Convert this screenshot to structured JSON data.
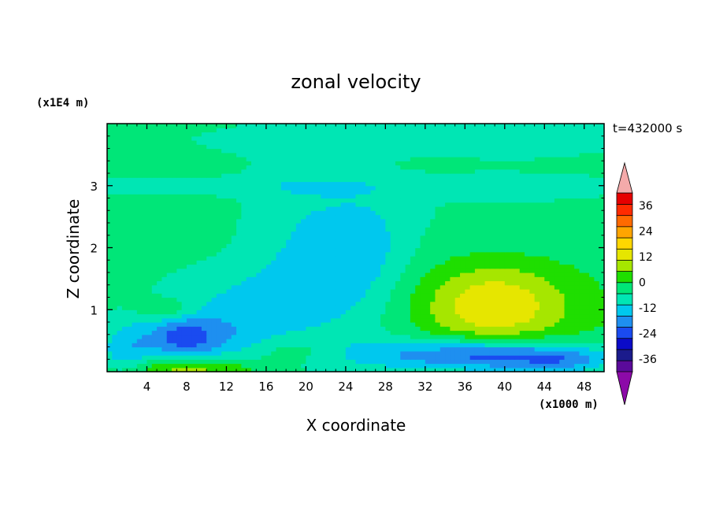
{
  "chart_data": {
    "type": "heatmap",
    "title": "zonal velocity",
    "xlabel": "X coordinate",
    "ylabel": "Z coordinate",
    "x_unit_label": "(x1000 m)",
    "y_unit_label": "(x1E4 m)",
    "time_label": "t=432000 s",
    "xlim": [
      0,
      50
    ],
    "ylim": [
      0,
      4
    ],
    "x_ticks": [
      4,
      8,
      12,
      16,
      20,
      24,
      28,
      32,
      36,
      40,
      44,
      48
    ],
    "y_ticks": [
      1,
      2,
      3
    ],
    "colorbar": {
      "levels": [
        -42,
        -36,
        -30,
        -24,
        -18,
        -12,
        -6,
        0,
        6,
        12,
        18,
        24,
        30,
        36,
        42
      ],
      "tick_labels": [
        "36",
        "24",
        "12",
        "0",
        "-12",
        "-24",
        "-36"
      ],
      "extend": "both",
      "colors": [
        "#5a0a9a",
        "#1b1b8c",
        "#0b0bc8",
        "#1a4bf0",
        "#1e8ff0",
        "#00c8ee",
        "#00e6b4",
        "#00e678",
        "#1fde00",
        "#a6e600",
        "#e6e600",
        "#ffd700",
        "#ffa500",
        "#ff6a00",
        "#ff2b00",
        "#e60000"
      ],
      "under_color": "#8c0aa8",
      "over_color": "#f4aaaa"
    },
    "field": {
      "background": 2,
      "features": [
        {
          "x": 2,
          "z": 0.35,
          "sx": 2,
          "sz": 0.35,
          "v": -12
        },
        {
          "x": 8,
          "z": 0.05,
          "sx": 5,
          "sz": 0.12,
          "v": 14
        },
        {
          "x": 6,
          "z": 1.0,
          "sx": 2,
          "sz": 0.12,
          "v": 9
        },
        {
          "x": 7.5,
          "z": 0.55,
          "sx": 2.5,
          "sz": 0.25,
          "v": -18
        },
        {
          "x": 12,
          "z": 0.6,
          "sx": 4,
          "sz": 0.3,
          "v": -9
        },
        {
          "x": 14,
          "z": 1.2,
          "sx": 6,
          "sz": 0.4,
          "v": -7
        },
        {
          "x": 19,
          "z": 0.35,
          "sx": 3,
          "sz": 0.15,
          "v": 7
        },
        {
          "x": 24,
          "z": 1.6,
          "sx": 5,
          "sz": 0.9,
          "v": -9
        },
        {
          "x": 26,
          "z": 2.1,
          "sx": 2.5,
          "sz": 0.5,
          "v": -5
        },
        {
          "x": 19,
          "z": 2.3,
          "sx": 4,
          "sz": 1.2,
          "v": -4
        },
        {
          "x": 39,
          "z": 1.1,
          "sx": 5,
          "sz": 0.45,
          "v": 15
        },
        {
          "x": 39,
          "z": 1.0,
          "sx": 9,
          "sz": 0.85,
          "v": 7
        },
        {
          "x": 40,
          "z": 0.25,
          "sx": 7,
          "sz": 0.18,
          "v": -20
        },
        {
          "x": 33,
          "z": 0.3,
          "sx": 9,
          "sz": 0.2,
          "v": -10
        },
        {
          "x": 46,
          "z": 0.15,
          "sx": 3,
          "sz": 0.15,
          "v": -8
        },
        {
          "x": 25,
          "z": 3.0,
          "sx": 30,
          "sz": 0.12,
          "v": -4
        },
        {
          "x": 40,
          "z": 2.4,
          "sx": 8,
          "sz": 0.7,
          "v": -3
        },
        {
          "x": 20,
          "z": 3.75,
          "sx": 12,
          "sz": 0.2,
          "v": -3
        },
        {
          "x": 44,
          "z": 3.8,
          "sx": 10,
          "sz": 0.25,
          "v": -3
        }
      ]
    }
  }
}
